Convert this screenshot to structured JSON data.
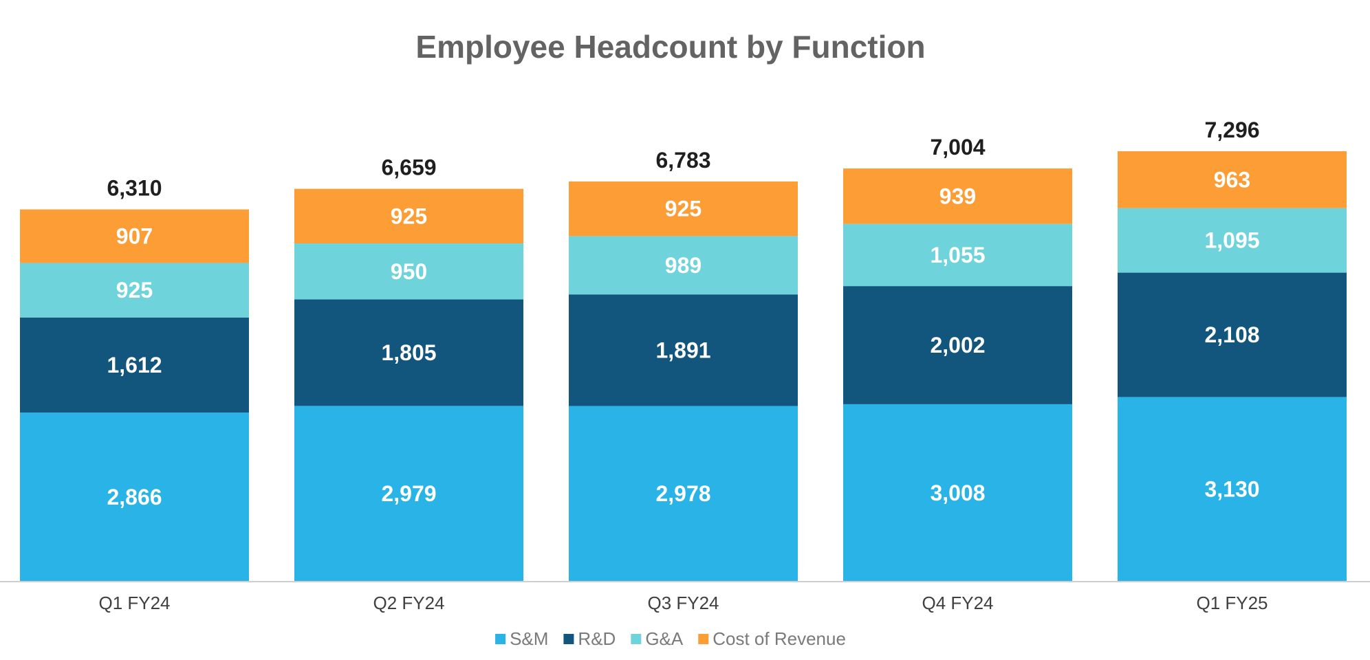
{
  "chart_data": {
    "type": "bar",
    "stacked": true,
    "title": "Employee Headcount by Function",
    "categories": [
      "Q1 FY24",
      "Q2 FY24",
      "Q3 FY24",
      "Q4 FY24",
      "Q1 FY25"
    ],
    "series": [
      {
        "name": "S&M",
        "color": "#29b3e6",
        "values": [
          2866,
          2979,
          2978,
          3008,
          3130
        ]
      },
      {
        "name": "R&D",
        "color": "#12557d",
        "values": [
          1612,
          1805,
          1891,
          2002,
          2108
        ]
      },
      {
        "name": "G&A",
        "color": "#6fd3db",
        "values": [
          925,
          950,
          989,
          1055,
          1095
        ]
      },
      {
        "name": "Cost of Revenue",
        "color": "#fd9d35",
        "values": [
          907,
          925,
          925,
          939,
          963
        ]
      }
    ],
    "segment_labels": [
      [
        "2,866",
        "2,979",
        "2,978",
        "3,008",
        "3,130"
      ],
      [
        "1,612",
        "1,805",
        "1,891",
        "2,002",
        "2,108"
      ],
      [
        "925",
        "950",
        "989",
        "1,055",
        "1,095"
      ],
      [
        "907",
        "925",
        "925",
        "939",
        "963"
      ]
    ],
    "totals": [
      6310,
      6659,
      6783,
      7004,
      7296
    ],
    "total_labels": [
      "6,310",
      "6,659",
      "6,783",
      "7,004",
      "7,296"
    ],
    "ylim": [
      0,
      8500
    ],
    "grid": false,
    "legend_position": "bottom",
    "xlabel": "",
    "ylabel": ""
  }
}
